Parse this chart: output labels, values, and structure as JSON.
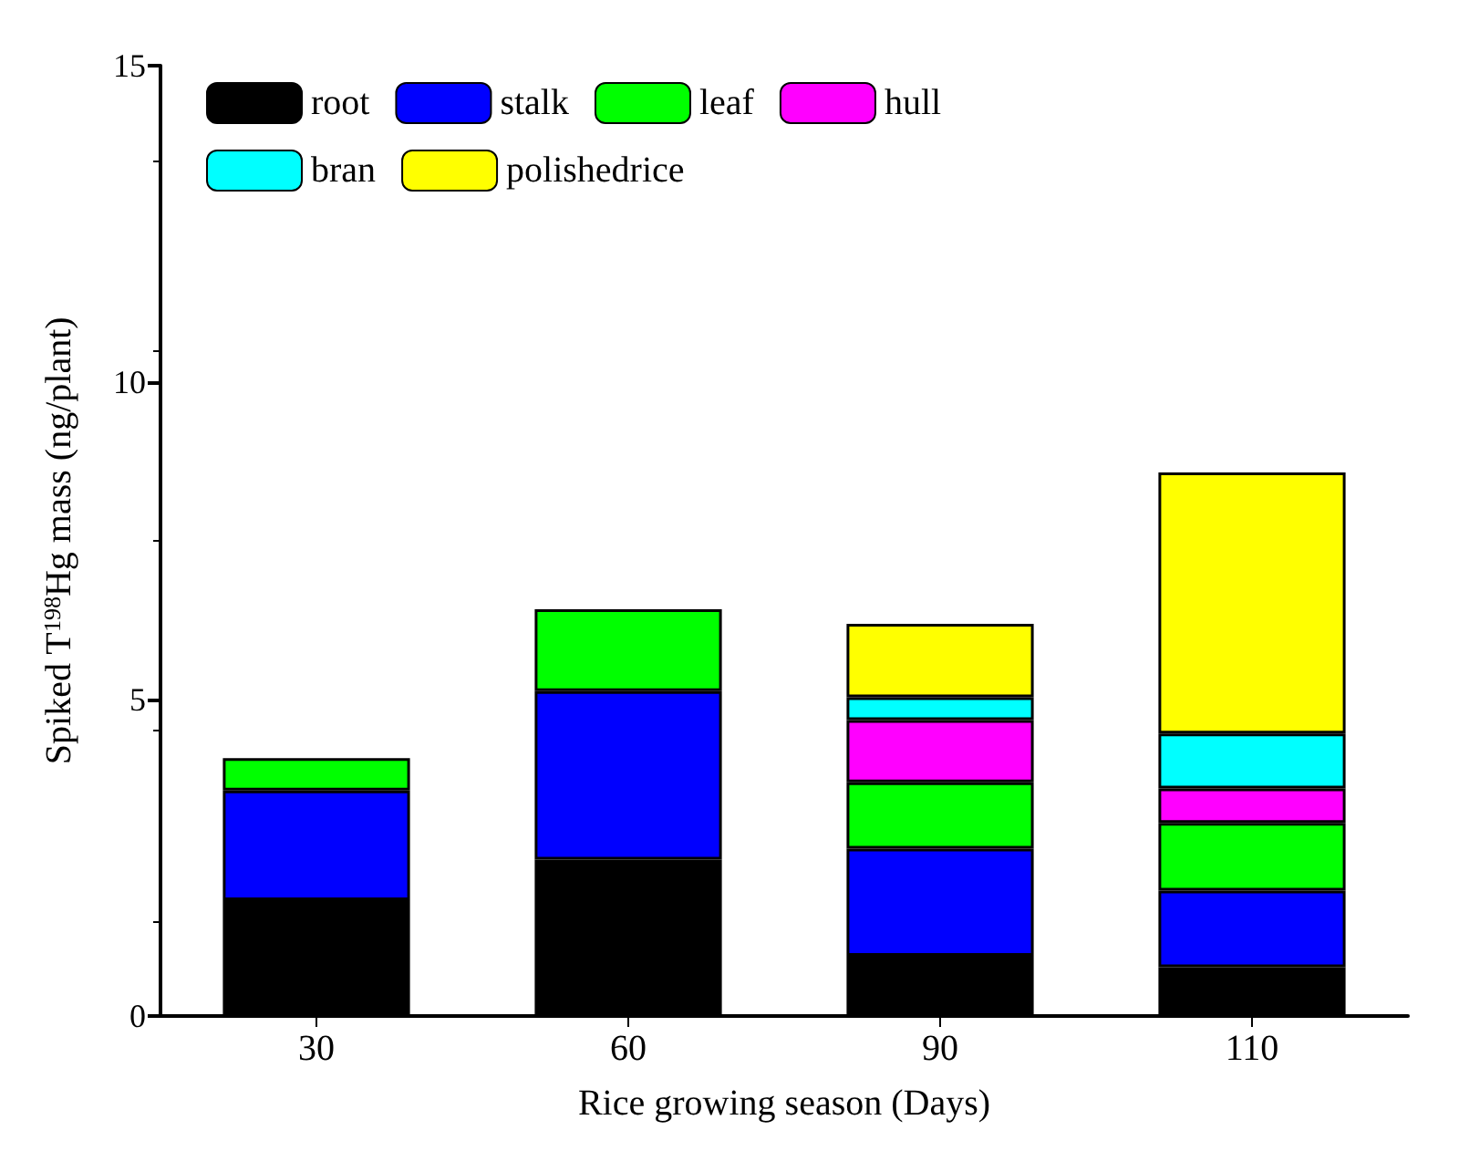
{
  "chart_data": {
    "type": "bar",
    "stacked": true,
    "xlabel": "Rice growing season (Days)",
    "ylabel": "Spiked T$^{198}$Hg mass (ng/plant)",
    "categories": [
      "30",
      "60",
      "90",
      "110"
    ],
    "series": [
      {
        "name": "root",
        "color": "#000000",
        "values": [
          1.83,
          2.47,
          0.95,
          0.77
        ]
      },
      {
        "name": "stalk",
        "color": "#0000ff",
        "values": [
          1.73,
          2.66,
          1.69,
          1.21
        ]
      },
      {
        "name": "leaf",
        "color": "#00ff00",
        "values": [
          0.51,
          1.29,
          1.05,
          1.07
        ]
      },
      {
        "name": "hull",
        "color": "#ff00ff",
        "values": [
          null,
          null,
          0.98,
          0.54
        ]
      },
      {
        "name": "bran",
        "color": "#00ffff",
        "values": [
          null,
          null,
          0.36,
          0.87
        ]
      },
      {
        "name": "polishedrice",
        "color": "#ffff00",
        "values": [
          null,
          null,
          1.16,
          4.12
        ]
      }
    ],
    "ylim": [
      0,
      15
    ],
    "yticks": [
      0,
      5,
      10,
      15
    ],
    "grid": false,
    "legend": "top left"
  }
}
